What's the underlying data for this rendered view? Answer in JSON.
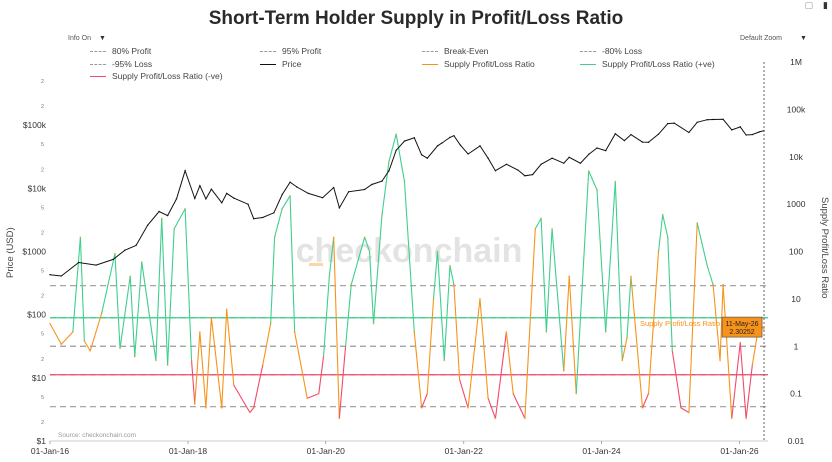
{
  "title": "Short-Term Holder Supply in Profit/Loss Ratio",
  "controls": {
    "info_label": "Info On",
    "zoom_label": "Default Zoom"
  },
  "legend": [
    {
      "label": "80% Profit",
      "style": "dash",
      "color": "#9a9a9a"
    },
    {
      "label": "95% Profit",
      "style": "dash",
      "color": "#9a9a9a"
    },
    {
      "label": "Break-Even",
      "style": "dash",
      "color": "#9a9a9a"
    },
    {
      "label": "-80% Loss",
      "style": "dash",
      "color": "#9a9a9a"
    },
    {
      "label": "-95% Loss",
      "style": "dash",
      "color": "#9a9a9a"
    },
    {
      "label": "Price",
      "style": "solid",
      "color": "#111111"
    },
    {
      "label": "Supply Profit/Loss Ratio",
      "style": "solid",
      "color": "#f7931a"
    },
    {
      "label": "Supply Profit/Loss Ratio (+ve)",
      "style": "solid",
      "color": "#3ecf8e"
    },
    {
      "label": "Supply Profit/Loss Ratio (-ve)",
      "style": "solid",
      "color": "#f2496b"
    }
  ],
  "axes": {
    "y_left_label": "Price (USD)",
    "y_right_label": "Supply Profit/Loss Ratio",
    "left_ticks": [
      {
        "value": 100000,
        "label": "$100k"
      },
      {
        "value": 10000,
        "label": "$10k"
      },
      {
        "value": 1000,
        "label": "$1000"
      },
      {
        "value": 100,
        "label": "$100"
      },
      {
        "value": 10,
        "label": "$10"
      },
      {
        "value": 1,
        "label": "$1"
      }
    ],
    "left_minor": [
      {
        "value": 500000,
        "label": "2"
      },
      {
        "value": 200000,
        "label": "2"
      },
      {
        "value": 50000,
        "label": "5"
      },
      {
        "value": 20000,
        "label": "2"
      },
      {
        "value": 5000,
        "label": "5"
      },
      {
        "value": 2000,
        "label": "2"
      },
      {
        "value": 500,
        "label": "5"
      },
      {
        "value": 200,
        "label": "2"
      },
      {
        "value": 50,
        "label": "5"
      },
      {
        "value": 20,
        "label": "2"
      },
      {
        "value": 5,
        "label": "5"
      },
      {
        "value": 2,
        "label": "2"
      }
    ],
    "right_ticks": [
      {
        "value": 1000000,
        "label": "1M"
      },
      {
        "value": 100000,
        "label": "100k"
      },
      {
        "value": 10000,
        "label": "10k"
      },
      {
        "value": 1000,
        "label": "1000"
      },
      {
        "value": 100,
        "label": "100"
      },
      {
        "value": 10,
        "label": "10"
      },
      {
        "value": 1,
        "label": "1"
      },
      {
        "value": 0.1,
        "label": "0.1"
      },
      {
        "value": 0.01,
        "label": "0.01"
      }
    ],
    "x_ticks": [
      {
        "date": "2016-01-01",
        "label": "01-Jan-16"
      },
      {
        "date": "2018-01-01",
        "label": "01-Jan-18"
      },
      {
        "date": "2020-01-01",
        "label": "01-Jan-20"
      },
      {
        "date": "2022-01-01",
        "label": "01-Jan-22"
      },
      {
        "date": "2024-01-01",
        "label": "01-Jan-24"
      },
      {
        "date": "2026-01-01",
        "label": "01-Jan-26"
      }
    ]
  },
  "source": "Source: checkonchain.com",
  "watermark": "checkonchain",
  "tooltip": {
    "series": "Supply Profit/Loss Ratio",
    "date": "11-May-26",
    "value": "2.30252"
  },
  "chart_data": {
    "type": "line",
    "title": "Short-Term Holder Supply in Profit/Loss Ratio",
    "x_range": [
      "2016-01-01",
      "2026-06-01"
    ],
    "y_left": {
      "label": "Price (USD)",
      "scale": "log",
      "range": [
        1,
        1000000
      ]
    },
    "y_right": {
      "label": "Supply Profit/Loss Ratio",
      "scale": "log",
      "range": [
        0.01,
        1000000
      ]
    },
    "thresholds": [
      {
        "name": "80% Profit",
        "value": 19
      },
      {
        "name": "95% Profit",
        "value": 4
      },
      {
        "name": "Break-Even",
        "value": 1
      },
      {
        "name": "-80% Loss",
        "value": 0.25
      },
      {
        "name": "-95% Loss",
        "value": 0.053
      }
    ],
    "ratio_threshold_lines": [
      {
        "name": "Supply Profit/Loss Ratio (+ve) threshold",
        "value": 4,
        "color": "#3ecf8e"
      },
      {
        "name": "Supply Profit/Loss Ratio (-ve) threshold",
        "value": 0.25,
        "color": "#f2496b"
      }
    ],
    "series": [
      {
        "name": "Price",
        "axis": "left",
        "color": "#111111",
        "points": [
          [
            "2016-01-01",
            430
          ],
          [
            "2016-03-01",
            410
          ],
          [
            "2016-06-01",
            670
          ],
          [
            "2016-09-01",
            610
          ],
          [
            "2016-12-01",
            750
          ],
          [
            "2017-02-01",
            1050
          ],
          [
            "2017-04-01",
            1250
          ],
          [
            "2017-06-01",
            2600
          ],
          [
            "2017-08-01",
            4300
          ],
          [
            "2017-09-15",
            3700
          ],
          [
            "2017-11-01",
            6800
          ],
          [
            "2017-12-17",
            19000
          ],
          [
            "2018-02-06",
            6900
          ],
          [
            "2018-03-05",
            11000
          ],
          [
            "2018-04-06",
            6800
          ],
          [
            "2018-05-05",
            9700
          ],
          [
            "2018-06-29",
            5900
          ],
          [
            "2018-07-25",
            8300
          ],
          [
            "2018-09-01",
            7000
          ],
          [
            "2018-11-15",
            5600
          ],
          [
            "2018-12-15",
            3300
          ],
          [
            "2019-02-01",
            3450
          ],
          [
            "2019-04-01",
            4100
          ],
          [
            "2019-05-15",
            8000
          ],
          [
            "2019-06-26",
            12500
          ],
          [
            "2019-08-01",
            10500
          ],
          [
            "2019-10-01",
            8300
          ],
          [
            "2019-12-15",
            7100
          ],
          [
            "2020-02-12",
            10300
          ],
          [
            "2020-03-13",
            4900
          ],
          [
            "2020-05-01",
            8800
          ],
          [
            "2020-07-25",
            9600
          ],
          [
            "2020-09-01",
            11500
          ],
          [
            "2020-10-25",
            13000
          ],
          [
            "2020-12-01",
            19000
          ],
          [
            "2021-01-08",
            40000
          ],
          [
            "2021-02-21",
            56000
          ],
          [
            "2021-04-14",
            63000
          ],
          [
            "2021-05-23",
            34000
          ],
          [
            "2021-06-22",
            30000
          ],
          [
            "2021-08-15",
            47000
          ],
          [
            "2021-09-07",
            52000
          ],
          [
            "2021-10-20",
            64000
          ],
          [
            "2021-11-10",
            68000
          ],
          [
            "2021-12-15",
            48000
          ],
          [
            "2022-01-24",
            35000
          ],
          [
            "2022-03-28",
            47000
          ],
          [
            "2022-05-10",
            30000
          ],
          [
            "2022-06-18",
            19000
          ],
          [
            "2022-08-15",
            24000
          ],
          [
            "2022-10-15",
            19500
          ],
          [
            "2022-11-21",
            15800
          ],
          [
            "2023-01-01",
            16500
          ],
          [
            "2023-02-15",
            24000
          ],
          [
            "2023-04-14",
            30000
          ],
          [
            "2023-06-15",
            25000
          ],
          [
            "2023-07-14",
            31000
          ],
          [
            "2023-09-11",
            25000
          ],
          [
            "2023-10-25",
            34500
          ],
          [
            "2023-12-08",
            43500
          ],
          [
            "2024-01-23",
            39500
          ],
          [
            "2024-03-14",
            73000
          ],
          [
            "2024-05-01",
            57000
          ],
          [
            "2024-06-05",
            71000
          ],
          [
            "2024-08-05",
            54000
          ],
          [
            "2024-09-06",
            53500
          ],
          [
            "2024-10-29",
            72000
          ],
          [
            "2024-12-17",
            106000
          ],
          [
            "2025-01-20",
            108000
          ],
          [
            "2025-04-08",
            76500
          ],
          [
            "2025-05-22",
            111000
          ],
          [
            "2025-07-14",
            122000
          ],
          [
            "2025-08-14",
            123000
          ],
          [
            "2025-10-06",
            124000
          ],
          [
            "2025-11-21",
            84000
          ],
          [
            "2026-01-05",
            94000
          ],
          [
            "2026-02-05",
            70000
          ],
          [
            "2026-03-10",
            71000
          ],
          [
            "2026-04-15",
            78000
          ],
          [
            "2026-05-11",
            82000
          ]
        ]
      },
      {
        "name": "Supply Profit/Loss Ratio",
        "axis": "right",
        "color": "#f7931a",
        "points": [
          [
            "2016-01-01",
            3
          ],
          [
            "2016-03-01",
            1.1
          ],
          [
            "2016-05-01",
            2
          ],
          [
            "2016-06-10",
            200
          ],
          [
            "2016-07-01",
            1.3
          ],
          [
            "2016-08-01",
            0.8
          ],
          [
            "2016-10-01",
            5
          ],
          [
            "2016-12-10",
            90
          ],
          [
            "2017-01-06",
            0.9
          ],
          [
            "2017-03-01",
            30
          ],
          [
            "2017-03-25",
            0.6
          ],
          [
            "2017-05-01",
            60
          ],
          [
            "2017-07-15",
            0.5
          ],
          [
            "2017-08-15",
            500
          ],
          [
            "2017-09-15",
            0.4
          ],
          [
            "2017-10-20",
            300
          ],
          [
            "2017-12-17",
            800
          ],
          [
            "2018-01-20",
            0.5
          ],
          [
            "2018-02-06",
            0.06
          ],
          [
            "2018-03-05",
            2
          ],
          [
            "2018-04-06",
            0.05
          ],
          [
            "2018-05-05",
            4
          ],
          [
            "2018-06-29",
            0.05
          ],
          [
            "2018-07-25",
            6
          ],
          [
            "2018-09-01",
            0.15
          ],
          [
            "2018-11-25",
            0.04
          ],
          [
            "2018-12-15",
            0.05
          ],
          [
            "2019-02-01",
            0.4
          ],
          [
            "2019-03-15",
            3
          ],
          [
            "2019-04-05",
            200
          ],
          [
            "2019-05-15",
            800
          ],
          [
            "2019-06-26",
            1500
          ],
          [
            "2019-07-20",
            2
          ],
          [
            "2019-09-25",
            0.08
          ],
          [
            "2019-11-25",
            0.1
          ],
          [
            "2019-12-20",
            0.6
          ],
          [
            "2020-01-20",
            30
          ],
          [
            "2020-02-12",
            200
          ],
          [
            "2020-03-13",
            0.03
          ],
          [
            "2020-04-15",
            1
          ],
          [
            "2020-05-15",
            20
          ],
          [
            "2020-07-25",
            200
          ],
          [
            "2020-08-20",
            100
          ],
          [
            "2020-09-10",
            3
          ],
          [
            "2020-10-25",
            600
          ],
          [
            "2020-12-01",
            8000
          ],
          [
            "2021-01-08",
            30000
          ],
          [
            "2021-02-21",
            3000
          ],
          [
            "2021-04-14",
            2
          ],
          [
            "2021-05-23",
            0.05
          ],
          [
            "2021-06-22",
            0.1
          ],
          [
            "2021-07-25",
            10
          ],
          [
            "2021-08-15",
            100
          ],
          [
            "2021-09-20",
            0.5
          ],
          [
            "2021-10-20",
            50
          ],
          [
            "2021-11-10",
            20
          ],
          [
            "2021-12-10",
            0.2
          ],
          [
            "2022-01-24",
            0.05
          ],
          [
            "2022-03-28",
            10
          ],
          [
            "2022-05-10",
            0.08
          ],
          [
            "2022-06-18",
            0.03
          ],
          [
            "2022-08-15",
            2
          ],
          [
            "2022-09-20",
            0.1
          ],
          [
            "2022-11-21",
            0.03
          ],
          [
            "2023-01-15",
            300
          ],
          [
            "2023-02-15",
            500
          ],
          [
            "2023-03-15",
            2
          ],
          [
            "2023-04-14",
            300
          ],
          [
            "2023-06-15",
            0.3
          ],
          [
            "2023-07-14",
            30
          ],
          [
            "2023-08-20",
            0.1
          ],
          [
            "2023-10-25",
            5000
          ],
          [
            "2023-12-08",
            2000
          ],
          [
            "2024-01-23",
            2
          ],
          [
            "2024-03-14",
            3000
          ],
          [
            "2024-04-20",
            0.5
          ],
          [
            "2024-05-15",
            1.5
          ],
          [
            "2024-06-05",
            30
          ],
          [
            "2024-08-05",
            0.05
          ],
          [
            "2024-09-06",
            0.1
          ],
          [
            "2024-10-29",
            100
          ],
          [
            "2024-11-20",
            600
          ],
          [
            "2024-12-17",
            200
          ],
          [
            "2025-01-10",
            0.8
          ],
          [
            "2025-02-25",
            0.05
          ],
          [
            "2025-04-08",
            0.04
          ],
          [
            "2025-05-22",
            400
          ],
          [
            "2025-07-14",
            50
          ],
          [
            "2025-08-14",
            20
          ],
          [
            "2025-09-20",
            0.5
          ],
          [
            "2025-10-06",
            20
          ],
          [
            "2025-11-21",
            0.03
          ],
          [
            "2026-01-05",
            1.2
          ],
          [
            "2026-02-05",
            0.03
          ],
          [
            "2026-03-10",
            0.4
          ],
          [
            "2026-04-15",
            3
          ],
          [
            "2026-05-11",
            2.30252
          ]
        ]
      }
    ]
  }
}
